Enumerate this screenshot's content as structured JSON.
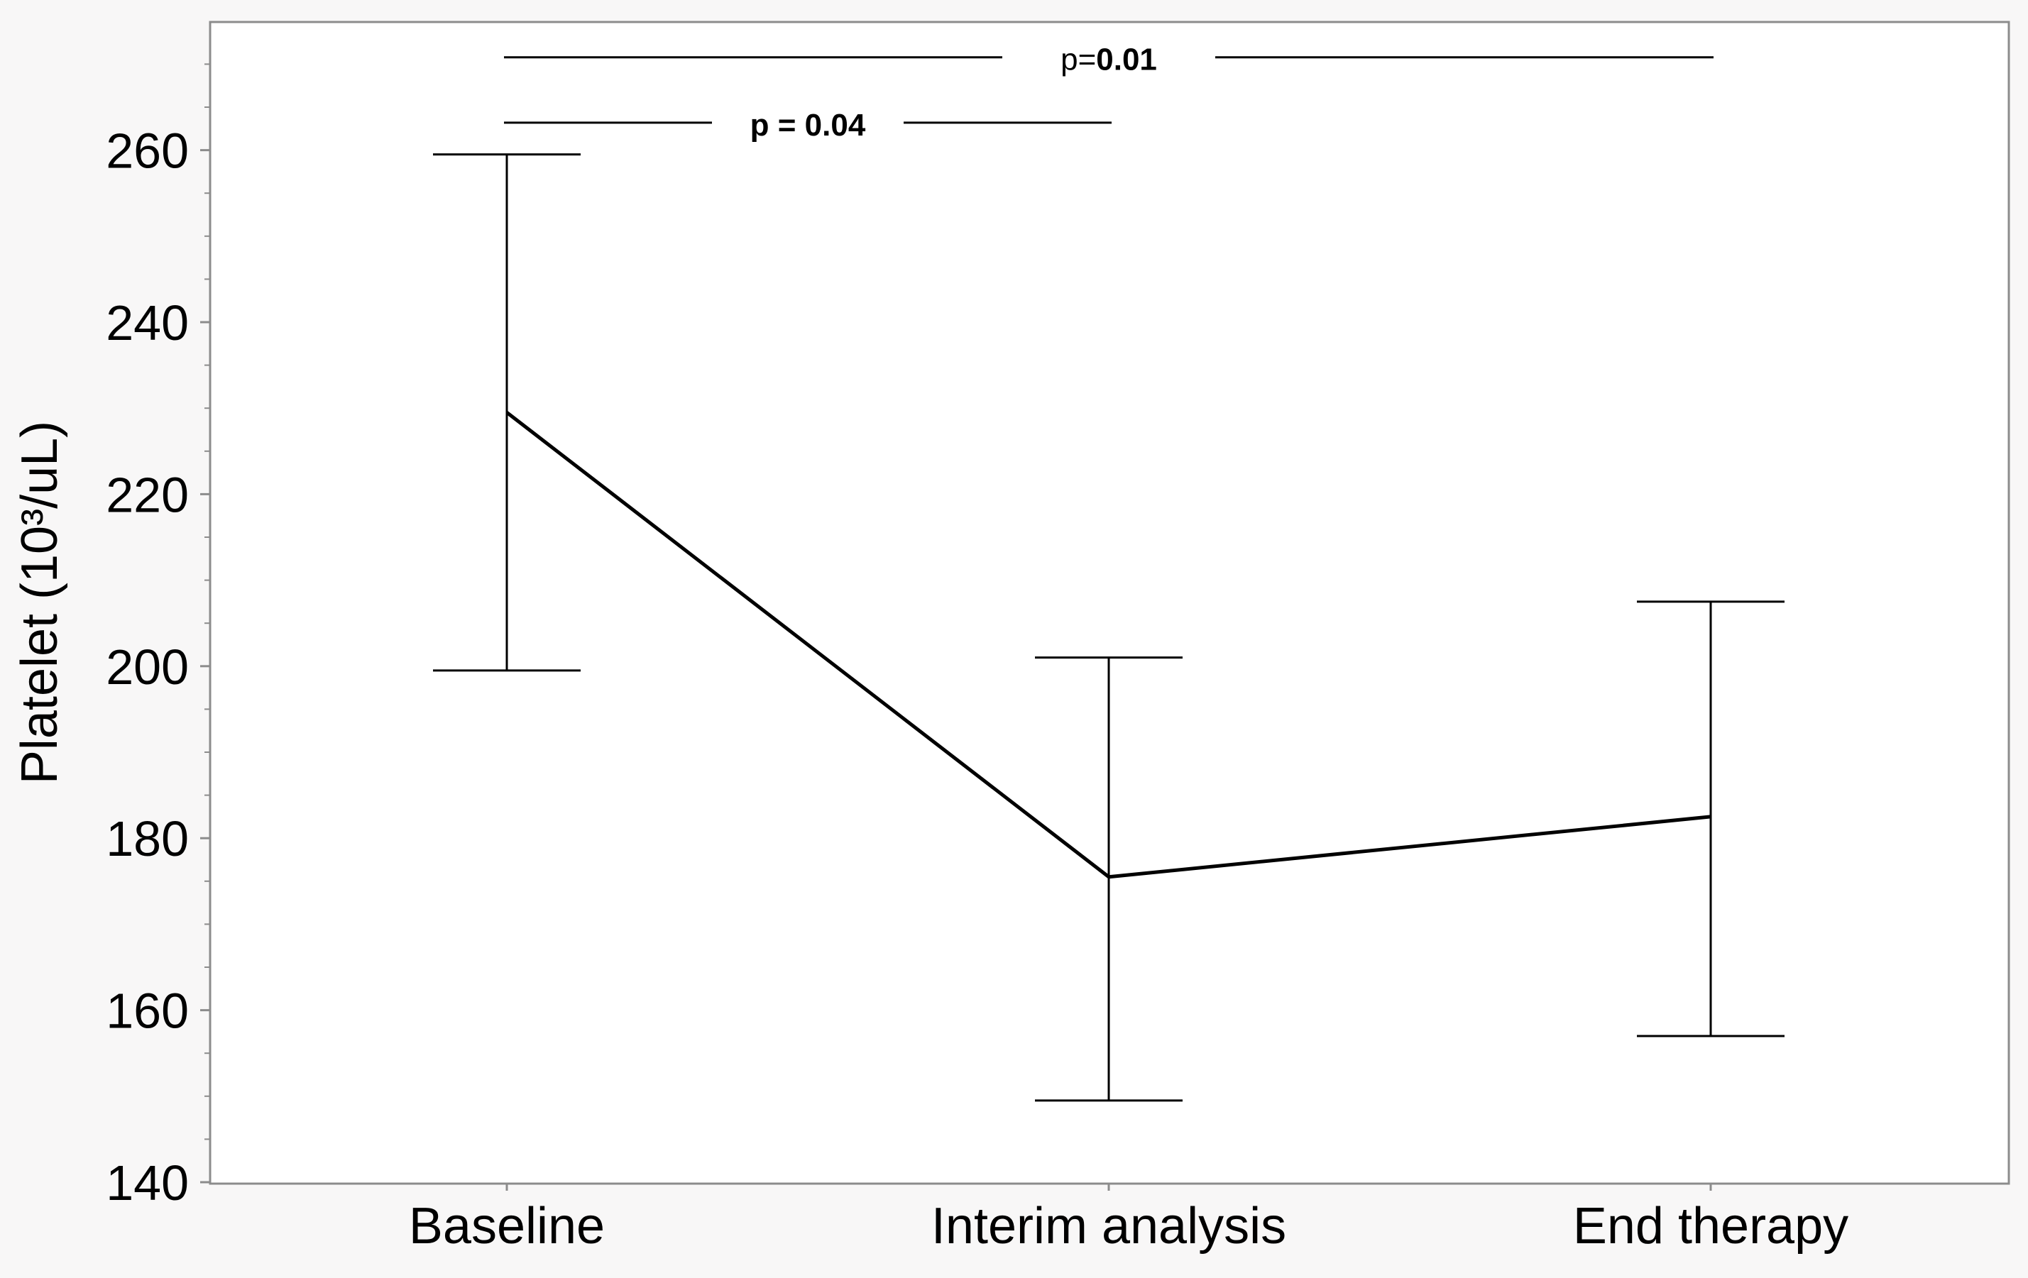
{
  "chart_data": {
    "type": "line",
    "ylabel": "Platelet (10³/uL)",
    "xlabel": "",
    "categories": [
      "Baseline",
      "Interim analysis",
      "End therapy"
    ],
    "series": [
      {
        "values": [
          229.5,
          175.5,
          182.5
        ],
        "error_low": [
          199.5,
          149.5,
          157
        ],
        "error_high": [
          259.5,
          201,
          207.5
        ]
      }
    ],
    "ylim": [
      140,
      271
    ],
    "yticks": [
      140,
      160,
      180,
      200,
      220,
      240,
      260
    ],
    "ytick_labels": [
      "140",
      "160",
      "180",
      "200",
      "220",
      "240",
      "260"
    ],
    "y_minor_step": 5,
    "grid": false,
    "annotations": [
      {
        "from": "Baseline",
        "to": "End therapy",
        "level": 270.8,
        "prefix": "p=",
        "value": "0.01"
      },
      {
        "from": "Baseline",
        "to": "Interim analysis",
        "level": 263.2,
        "prefix": "",
        "value": "p = 0.04"
      }
    ],
    "colors": {
      "background": "#f8f7f7",
      "plot_background": "#ffffff",
      "line": "#000000",
      "axis": "#8c8c8c"
    }
  }
}
